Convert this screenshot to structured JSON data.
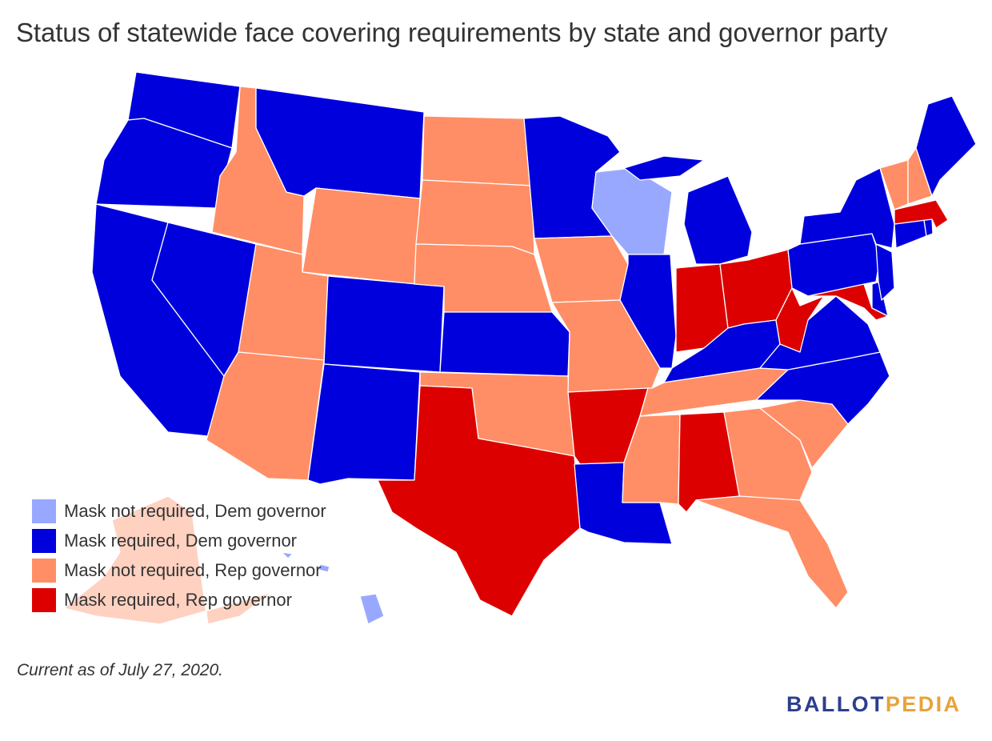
{
  "title": "Status of statewide face covering requirements by state and governor party",
  "colors": {
    "mask_not_required_dem": "#99a8ff",
    "mask_required_dem": "#0000dd",
    "mask_not_required_rep": "#ff8e66",
    "mask_required_rep": "#dd0000"
  },
  "legend": [
    {
      "label": "Mask not required, Dem governor",
      "color": "#99a8ff"
    },
    {
      "label": "Mask required, Dem governor",
      "color": "#0000dd"
    },
    {
      "label": "Mask not required, Rep governor",
      "color": "#ff8e66"
    },
    {
      "label": "Mask required, Rep governor",
      "color": "#dd0000"
    }
  ],
  "footnote": "Current as of July 27, 2020.",
  "brand": {
    "part1": "BALLOT",
    "part2": "PEDIA"
  },
  "states": {
    "WA": "mask_required_dem",
    "OR": "mask_required_dem",
    "CA": "mask_required_dem",
    "NV": "mask_required_dem",
    "ID": "mask_not_required_rep",
    "MT": "mask_required_dem",
    "WY": "mask_not_required_rep",
    "UT": "mask_not_required_rep",
    "AZ": "mask_not_required_rep",
    "CO": "mask_required_dem",
    "NM": "mask_required_dem",
    "ND": "mask_not_required_rep",
    "SD": "mask_not_required_rep",
    "NE": "mask_not_required_rep",
    "KS": "mask_required_dem",
    "OK": "mask_not_required_rep",
    "TX": "mask_required_rep",
    "MN": "mask_required_dem",
    "IA": "mask_not_required_rep",
    "MO": "mask_not_required_rep",
    "AR": "mask_required_rep",
    "LA": "mask_required_dem",
    "WI": "mask_not_required_dem",
    "IL": "mask_required_dem",
    "MI": "mask_required_dem",
    "IN": "mask_required_rep",
    "OH": "mask_required_rep",
    "KY": "mask_required_dem",
    "TN": "mask_not_required_rep",
    "MS": "mask_not_required_rep",
    "AL": "mask_required_rep",
    "GA": "mask_not_required_rep",
    "FL": "mask_not_required_rep",
    "SC": "mask_not_required_rep",
    "NC": "mask_required_dem",
    "VA": "mask_required_dem",
    "WV": "mask_required_rep",
    "MD": "mask_required_rep",
    "DE": "mask_required_dem",
    "PA": "mask_required_dem",
    "NJ": "mask_required_dem",
    "NY": "mask_required_dem",
    "CT": "mask_required_dem",
    "RI": "mask_required_dem",
    "MA": "mask_required_rep",
    "VT": "mask_not_required_rep",
    "NH": "mask_not_required_rep",
    "ME": "mask_required_dem",
    "AK": "mask_not_required_rep",
    "HI": "mask_not_required_dem"
  }
}
